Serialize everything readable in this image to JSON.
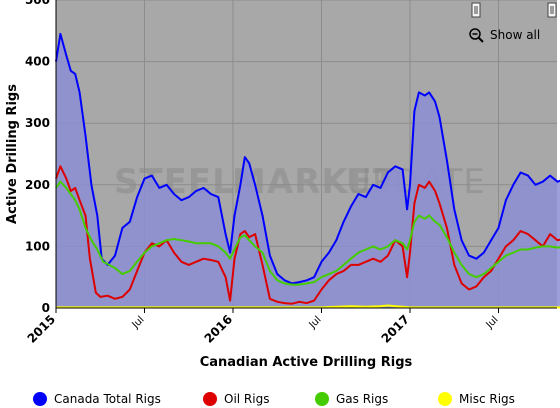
{
  "controls": {
    "show_all_label": "Show all"
  },
  "watermark": {
    "text_bold": "STEEL",
    "text_bold_2": "MARKET",
    "text_light": "UPDATE"
  },
  "chart_data": {
    "type": "line",
    "title": "",
    "xlabel": "Canadian Active Drilling Rigs",
    "ylabel": "Active Drilling Rigs",
    "ylim": [
      0,
      500
    ],
    "yticks": [
      0,
      100,
      200,
      300,
      400,
      500
    ],
    "xticks": [
      {
        "label": "2015",
        "t": 0,
        "bold": true
      },
      {
        "label": "Jul",
        "t": 6,
        "bold": false
      },
      {
        "label": "2016",
        "t": 12,
        "bold": true
      },
      {
        "label": "Jul",
        "t": 18,
        "bold": false
      },
      {
        "label": "2017",
        "t": 24,
        "bold": true
      },
      {
        "label": "Jul",
        "t": 30,
        "bold": false
      }
    ],
    "x_unit": "months since Jan 2015",
    "grid": true,
    "legend_position": "bottom",
    "series": [
      {
        "name": "Canada Total Rigs",
        "color": "#0000ff",
        "fill": true,
        "points": [
          [
            0,
            400
          ],
          [
            0.3,
            445
          ],
          [
            0.7,
            410
          ],
          [
            1.0,
            385
          ],
          [
            1.3,
            380
          ],
          [
            1.6,
            350
          ],
          [
            2.0,
            280
          ],
          [
            2.4,
            200
          ],
          [
            2.8,
            150
          ],
          [
            3.1,
            80
          ],
          [
            3.5,
            70
          ],
          [
            4.0,
            85
          ],
          [
            4.5,
            130
          ],
          [
            5.0,
            140
          ],
          [
            5.5,
            180
          ],
          [
            6.0,
            210
          ],
          [
            6.5,
            215
          ],
          [
            7.0,
            195
          ],
          [
            7.5,
            200
          ],
          [
            8.0,
            185
          ],
          [
            8.5,
            175
          ],
          [
            9.0,
            180
          ],
          [
            9.5,
            190
          ],
          [
            10.0,
            195
          ],
          [
            10.5,
            185
          ],
          [
            11.0,
            180
          ],
          [
            11.5,
            120
          ],
          [
            11.8,
            90
          ],
          [
            12.1,
            150
          ],
          [
            12.5,
            200
          ],
          [
            12.8,
            245
          ],
          [
            13.1,
            235
          ],
          [
            13.5,
            200
          ],
          [
            14.0,
            150
          ],
          [
            14.5,
            85
          ],
          [
            15.0,
            55
          ],
          [
            15.5,
            45
          ],
          [
            16.0,
            40
          ],
          [
            16.5,
            42
          ],
          [
            17.0,
            45
          ],
          [
            17.5,
            50
          ],
          [
            18.0,
            75
          ],
          [
            18.5,
            90
          ],
          [
            19.0,
            110
          ],
          [
            19.5,
            140
          ],
          [
            20.0,
            165
          ],
          [
            20.5,
            185
          ],
          [
            21.0,
            180
          ],
          [
            21.5,
            200
          ],
          [
            22.0,
            195
          ],
          [
            22.5,
            220
          ],
          [
            23.0,
            230
          ],
          [
            23.5,
            225
          ],
          [
            23.8,
            160
          ],
          [
            24.0,
            200
          ],
          [
            24.3,
            320
          ],
          [
            24.6,
            350
          ],
          [
            25.0,
            345
          ],
          [
            25.3,
            350
          ],
          [
            25.7,
            335
          ],
          [
            26.0,
            310
          ],
          [
            26.5,
            240
          ],
          [
            27.0,
            160
          ],
          [
            27.5,
            110
          ],
          [
            28.0,
            85
          ],
          [
            28.5,
            80
          ],
          [
            29.0,
            90
          ],
          [
            29.5,
            110
          ],
          [
            30.0,
            130
          ],
          [
            30.5,
            175
          ],
          [
            31.0,
            200
          ],
          [
            31.5,
            220
          ],
          [
            32.0,
            215
          ],
          [
            32.5,
            200
          ],
          [
            33.0,
            205
          ],
          [
            33.5,
            215
          ],
          [
            34.0,
            205
          ],
          [
            34.5,
            210
          ],
          [
            34.8,
            212
          ]
        ]
      },
      {
        "name": "Oil Rigs",
        "color": "#dd0000",
        "fill": false,
        "points": [
          [
            0,
            210
          ],
          [
            0.3,
            230
          ],
          [
            0.7,
            210
          ],
          [
            1.0,
            190
          ],
          [
            1.3,
            195
          ],
          [
            1.6,
            175
          ],
          [
            2.0,
            150
          ],
          [
            2.3,
            80
          ],
          [
            2.7,
            25
          ],
          [
            3.0,
            18
          ],
          [
            3.5,
            20
          ],
          [
            4.0,
            15
          ],
          [
            4.5,
            18
          ],
          [
            5.0,
            30
          ],
          [
            5.5,
            60
          ],
          [
            6.0,
            90
          ],
          [
            6.5,
            105
          ],
          [
            7.0,
            100
          ],
          [
            7.5,
            110
          ],
          [
            8.0,
            90
          ],
          [
            8.5,
            75
          ],
          [
            9.0,
            70
          ],
          [
            9.5,
            75
          ],
          [
            10.0,
            80
          ],
          [
            10.5,
            78
          ],
          [
            11.0,
            75
          ],
          [
            11.5,
            50
          ],
          [
            11.8,
            12
          ],
          [
            12.1,
            80
          ],
          [
            12.5,
            120
          ],
          [
            12.8,
            125
          ],
          [
            13.1,
            115
          ],
          [
            13.5,
            120
          ],
          [
            14.0,
            70
          ],
          [
            14.5,
            15
          ],
          [
            15.0,
            10
          ],
          [
            15.5,
            8
          ],
          [
            16.0,
            7
          ],
          [
            16.5,
            10
          ],
          [
            17.0,
            8
          ],
          [
            17.5,
            12
          ],
          [
            18.0,
            30
          ],
          [
            18.5,
            45
          ],
          [
            19.0,
            55
          ],
          [
            19.5,
            60
          ],
          [
            20.0,
            70
          ],
          [
            20.5,
            70
          ],
          [
            21.0,
            75
          ],
          [
            21.5,
            80
          ],
          [
            22.0,
            75
          ],
          [
            22.5,
            85
          ],
          [
            23.0,
            110
          ],
          [
            23.5,
            100
          ],
          [
            23.8,
            50
          ],
          [
            24.0,
            90
          ],
          [
            24.3,
            170
          ],
          [
            24.6,
            200
          ],
          [
            25.0,
            195
          ],
          [
            25.3,
            205
          ],
          [
            25.7,
            190
          ],
          [
            26.0,
            170
          ],
          [
            26.5,
            130
          ],
          [
            27.0,
            70
          ],
          [
            27.5,
            40
          ],
          [
            28.0,
            30
          ],
          [
            28.5,
            35
          ],
          [
            29.0,
            50
          ],
          [
            29.5,
            60
          ],
          [
            30.0,
            80
          ],
          [
            30.5,
            100
          ],
          [
            31.0,
            110
          ],
          [
            31.5,
            125
          ],
          [
            32.0,
            120
          ],
          [
            32.5,
            110
          ],
          [
            33.0,
            100
          ],
          [
            33.5,
            120
          ],
          [
            34.0,
            110
          ],
          [
            34.5,
            112
          ],
          [
            34.8,
            110
          ]
        ]
      },
      {
        "name": "Gas Rigs",
        "color": "#44cc00",
        "fill": false,
        "points": [
          [
            0,
            195
          ],
          [
            0.3,
            205
          ],
          [
            0.7,
            195
          ],
          [
            1.0,
            185
          ],
          [
            1.3,
            175
          ],
          [
            1.6,
            160
          ],
          [
            2.0,
            130
          ],
          [
            2.4,
            110
          ],
          [
            2.8,
            95
          ],
          [
            3.2,
            75
          ],
          [
            3.6,
            70
          ],
          [
            4.0,
            65
          ],
          [
            4.5,
            55
          ],
          [
            5.0,
            60
          ],
          [
            5.5,
            75
          ],
          [
            6.0,
            90
          ],
          [
            6.5,
            100
          ],
          [
            7.0,
            105
          ],
          [
            7.5,
            110
          ],
          [
            8.0,
            112
          ],
          [
            8.5,
            110
          ],
          [
            9.0,
            108
          ],
          [
            9.5,
            105
          ],
          [
            10.0,
            105
          ],
          [
            10.5,
            105
          ],
          [
            11.0,
            100
          ],
          [
            11.5,
            90
          ],
          [
            11.8,
            80
          ],
          [
            12.1,
            95
          ],
          [
            12.5,
            115
          ],
          [
            12.8,
            118
          ],
          [
            13.1,
            110
          ],
          [
            13.5,
            100
          ],
          [
            14.0,
            90
          ],
          [
            14.5,
            60
          ],
          [
            15.0,
            45
          ],
          [
            15.5,
            40
          ],
          [
            16.0,
            38
          ],
          [
            16.5,
            38
          ],
          [
            17.0,
            40
          ],
          [
            17.5,
            42
          ],
          [
            18.0,
            50
          ],
          [
            18.5,
            55
          ],
          [
            19.0,
            60
          ],
          [
            19.5,
            70
          ],
          [
            20.0,
            80
          ],
          [
            20.5,
            90
          ],
          [
            21.0,
            95
          ],
          [
            21.5,
            100
          ],
          [
            22.0,
            95
          ],
          [
            22.5,
            100
          ],
          [
            23.0,
            110
          ],
          [
            23.5,
            105
          ],
          [
            23.8,
            95
          ],
          [
            24.0,
            110
          ],
          [
            24.3,
            140
          ],
          [
            24.6,
            150
          ],
          [
            25.0,
            145
          ],
          [
            25.3,
            150
          ],
          [
            25.7,
            140
          ],
          [
            26.0,
            135
          ],
          [
            26.5,
            115
          ],
          [
            27.0,
            90
          ],
          [
            27.5,
            70
          ],
          [
            28.0,
            55
          ],
          [
            28.5,
            50
          ],
          [
            29.0,
            55
          ],
          [
            29.5,
            65
          ],
          [
            30.0,
            75
          ],
          [
            30.5,
            85
          ],
          [
            31.0,
            90
          ],
          [
            31.5,
            95
          ],
          [
            32.0,
            95
          ],
          [
            32.5,
            98
          ],
          [
            33.0,
            100
          ],
          [
            33.5,
            100
          ],
          [
            34.0,
            98
          ],
          [
            34.5,
            100
          ],
          [
            34.8,
            98
          ]
        ]
      },
      {
        "name": "Misc Rigs",
        "color": "#ffff00",
        "fill": false,
        "points": [
          [
            0,
            1
          ],
          [
            5,
            1
          ],
          [
            10,
            1
          ],
          [
            15,
            1
          ],
          [
            18,
            1
          ],
          [
            19,
            2
          ],
          [
            20,
            3
          ],
          [
            21,
            2
          ],
          [
            22,
            3
          ],
          [
            22.5,
            4
          ],
          [
            23,
            3
          ],
          [
            23.5,
            2
          ],
          [
            24,
            1
          ],
          [
            25,
            1
          ],
          [
            26,
            1
          ],
          [
            28,
            1
          ],
          [
            30,
            1
          ],
          [
            32,
            1
          ],
          [
            34.8,
            1
          ]
        ]
      }
    ]
  }
}
